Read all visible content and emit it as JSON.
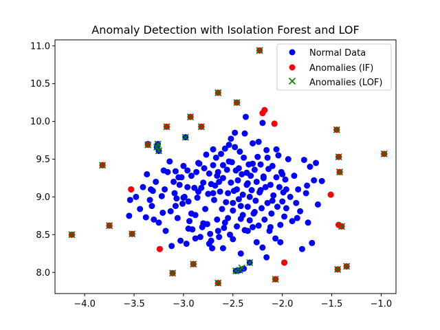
{
  "chart_data": {
    "type": "scatter",
    "title": "Anomaly Detection with Isolation Forest and LOF",
    "xlabel": "",
    "ylabel": "",
    "xlim": [
      -4.3,
      -0.85
    ],
    "ylim": [
      7.72,
      11.08
    ],
    "xticks": [
      -4.0,
      -3.5,
      -3.0,
      -2.5,
      -2.0,
      -1.5,
      -1.0
    ],
    "xtick_labels": [
      "−4.0",
      "−3.5",
      "−3.0",
      "−2.5",
      "−2.0",
      "−1.5",
      "−1.0"
    ],
    "yticks": [
      8.0,
      8.5,
      9.0,
      9.5,
      10.0,
      10.5,
      11.0
    ],
    "ytick_labels": [
      "8.0",
      "8.5",
      "9.0",
      "9.5",
      "10.0",
      "10.5",
      "11.0"
    ],
    "grid": false,
    "legend": {
      "location": "top-right",
      "entries": [
        "Normal Data",
        "Anomalies (IF)",
        "Anomalies (LOF)"
      ]
    },
    "colors": {
      "normal": "#0000ff",
      "if": "#ff0000",
      "lof": "#008000"
    },
    "series": [
      {
        "name": "Normal Data",
        "marker": "circle",
        "points": [
          [
            -4.13,
            8.5
          ],
          [
            -3.82,
            9.42
          ],
          [
            -3.75,
            8.62
          ],
          [
            -3.55,
            8.75
          ],
          [
            -3.54,
            8.96
          ],
          [
            -3.53,
            9.1
          ],
          [
            -3.52,
            8.51
          ],
          [
            -3.48,
            9.0
          ],
          [
            -3.44,
            8.84
          ],
          [
            -3.41,
            9.13
          ],
          [
            -3.38,
            8.73
          ],
          [
            -3.37,
            9.3
          ],
          [
            -3.36,
            9.7
          ],
          [
            -3.34,
            8.96
          ],
          [
            -3.33,
            9.1
          ],
          [
            -3.32,
            8.88
          ],
          [
            -3.31,
            9.08
          ],
          [
            -3.3,
            8.7
          ],
          [
            -3.28,
            9.2
          ],
          [
            -3.27,
            9.66
          ],
          [
            -3.26,
            9.7
          ],
          [
            -3.25,
            9.61
          ],
          [
            -3.25,
            8.66
          ],
          [
            -3.24,
            8.31
          ],
          [
            -3.22,
            9.01
          ],
          [
            -3.21,
            8.79
          ],
          [
            -3.2,
            9.35
          ],
          [
            -3.19,
            9.1
          ],
          [
            -3.18,
            8.55
          ],
          [
            -3.17,
            9.93
          ],
          [
            -3.16,
            9.33
          ],
          [
            -3.14,
            9.47
          ],
          [
            -3.13,
            8.81
          ],
          [
            -3.12,
            8.35
          ],
          [
            -3.11,
            7.99
          ],
          [
            -3.1,
            9.2
          ],
          [
            -3.09,
            9.05
          ],
          [
            -3.08,
            9.34
          ],
          [
            -3.07,
            8.98
          ],
          [
            -3.06,
            8.72
          ],
          [
            -3.05,
            9.26
          ],
          [
            -3.04,
            9.16
          ],
          [
            -3.03,
            8.42
          ],
          [
            -3.02,
            9.26
          ],
          [
            -3.01,
            8.91
          ],
          [
            -3.0,
            9.41
          ],
          [
            -2.99,
            9.0
          ],
          [
            -2.98,
            9.79
          ],
          [
            -2.97,
            8.38
          ],
          [
            -2.96,
            9.13
          ],
          [
            -2.95,
            8.94
          ],
          [
            -2.94,
            8.68
          ],
          [
            -2.93,
            10.06
          ],
          [
            -2.92,
            9.28
          ],
          [
            -2.91,
            8.57
          ],
          [
            -2.9,
            8.11
          ],
          [
            -2.89,
            9.12
          ],
          [
            -2.88,
            8.76
          ],
          [
            -2.87,
            9.33
          ],
          [
            -2.86,
            8.99
          ],
          [
            -2.85,
            9.07
          ],
          [
            -2.84,
            9.44
          ],
          [
            -2.83,
            8.47
          ],
          [
            -2.82,
            9.93
          ],
          [
            -2.81,
            8.6
          ],
          [
            -2.8,
            9.19
          ],
          [
            -2.79,
            9.38
          ],
          [
            -2.78,
            8.84
          ],
          [
            -2.77,
            9.56
          ],
          [
            -2.76,
            8.64
          ],
          [
            -2.75,
            9.04
          ],
          [
            -2.74,
            9.31
          ],
          [
            -2.73,
            8.51
          ],
          [
            -2.72,
            9.17
          ],
          [
            -2.71,
            8.32
          ],
          [
            -2.7,
            9.42
          ],
          [
            -2.69,
            8.96
          ],
          [
            -2.68,
            9.15
          ],
          [
            -2.67,
            9.52
          ],
          [
            -2.66,
            8.7
          ],
          [
            -2.65,
            9.33
          ],
          [
            -2.64,
            8.47
          ],
          [
            -2.63,
            9.07
          ],
          [
            -2.62,
            9.57
          ],
          [
            -2.61,
            8.84
          ],
          [
            -2.6,
            9.25
          ],
          [
            -2.59,
            8.59
          ],
          [
            -2.58,
            9.64
          ],
          [
            -2.57,
            8.93
          ],
          [
            -2.56,
            9.36
          ],
          [
            -2.55,
            8.72
          ],
          [
            -2.54,
            9.69
          ],
          [
            -2.53,
            8.5
          ],
          [
            -2.52,
            9.19
          ],
          [
            -2.51,
            9.46
          ],
          [
            -2.5,
            8.82
          ],
          [
            -2.49,
            9.08
          ],
          [
            -2.48,
            9.85
          ],
          [
            -2.47,
            9.35
          ],
          [
            -2.46,
            8.61
          ],
          [
            -2.45,
            9.22
          ],
          [
            -2.44,
            8.97
          ],
          [
            -2.43,
            9.6
          ],
          [
            -2.42,
            8.71
          ],
          [
            -2.41,
            9.3
          ],
          [
            -2.4,
            9.03
          ],
          [
            -2.39,
            9.52
          ],
          [
            -2.38,
            8.56
          ],
          [
            -2.37,
            10.06
          ],
          [
            -2.36,
            9.16
          ],
          [
            -2.35,
            8.87
          ],
          [
            -2.34,
            9.43
          ],
          [
            -2.33,
            8.69
          ],
          [
            -2.32,
            9.28
          ],
          [
            -2.31,
            9.09
          ],
          [
            -2.3,
            9.71
          ],
          [
            -2.29,
            8.78
          ],
          [
            -2.28,
            9.36
          ],
          [
            -2.27,
            8.95
          ],
          [
            -2.26,
            9.2
          ],
          [
            -2.25,
            9.53
          ],
          [
            -2.24,
            8.62
          ],
          [
            -2.23,
            9.06
          ],
          [
            -2.22,
            9.43
          ],
          [
            -2.21,
            8.85
          ],
          [
            -2.2,
            9.98
          ],
          [
            -2.19,
            9.27
          ],
          [
            -2.18,
            8.7
          ],
          [
            -2.17,
            9.13
          ],
          [
            -2.16,
            9.62
          ],
          [
            -2.15,
            8.92
          ],
          [
            -2.14,
            9.37
          ],
          [
            -2.13,
            8.55
          ],
          [
            -2.12,
            9.16
          ],
          [
            -2.11,
            8.78
          ],
          [
            -2.1,
            9.41
          ],
          [
            -2.09,
            9.02
          ],
          [
            -2.08,
            9.97
          ],
          [
            -2.07,
            8.45
          ],
          [
            -2.06,
            9.26
          ],
          [
            -2.05,
            8.87
          ],
          [
            -2.04,
            9.55
          ],
          [
            -2.03,
            9.13
          ],
          [
            -2.02,
            8.63
          ],
          [
            -2.01,
            9.33
          ],
          [
            -2.0,
            8.94
          ],
          [
            -1.99,
            9.06
          ],
          [
            -1.98,
            8.74
          ],
          [
            -1.97,
            9.23
          ],
          [
            -1.96,
            8.85
          ],
          [
            -1.94,
            9.5
          ],
          [
            -1.92,
            9.0
          ],
          [
            -1.9,
            8.68
          ],
          [
            -1.88,
            9.28
          ],
          [
            -1.86,
            8.92
          ],
          [
            -1.84,
            9.1
          ],
          [
            -1.82,
            8.81
          ],
          [
            -1.8,
            8.31
          ],
          [
            -1.78,
            9.49
          ],
          [
            -1.76,
            9.05
          ],
          [
            -1.74,
            8.66
          ],
          [
            -1.72,
            9.4
          ],
          [
            -1.7,
            8.39
          ],
          [
            -1.68,
            9.22
          ],
          [
            -1.66,
            9.45
          ],
          [
            -1.64,
            8.9
          ],
          [
            -1.6,
            9.21
          ],
          [
            -2.42,
            8.25
          ],
          [
            -2.6,
            8.32
          ],
          [
            -2.74,
            8.38
          ],
          [
            -2.88,
            8.45
          ],
          [
            -2.35,
            8.55
          ],
          [
            -2.2,
            8.33
          ],
          [
            -2.5,
            8.92
          ],
          [
            -2.28,
            8.8
          ],
          [
            -2.46,
            9.1
          ],
          [
            -2.64,
            9.2
          ],
          [
            -2.36,
            9.32
          ],
          [
            -2.54,
            9.47
          ],
          [
            -2.7,
            9.05
          ],
          [
            -2.4,
            8.76
          ],
          [
            -2.58,
            8.66
          ],
          [
            -2.22,
            9.09
          ],
          [
            -2.3,
            9.44
          ],
          [
            -2.48,
            9.66
          ],
          [
            -2.66,
            9.28
          ],
          [
            -2.82,
            9.12
          ],
          [
            -2.96,
            9.35
          ],
          [
            -3.08,
            8.88
          ],
          [
            -2.12,
            8.6
          ],
          [
            -2.06,
            9.63
          ],
          [
            -1.96,
            9.1
          ],
          [
            -2.02,
            8.4
          ],
          [
            -2.16,
            8.2
          ],
          [
            -2.3,
            8.6
          ],
          [
            -2.5,
            8.44
          ],
          [
            -2.65,
            8.55
          ],
          [
            -2.8,
            8.65
          ],
          [
            -2.92,
            8.78
          ],
          [
            -3.0,
            8.99
          ],
          [
            -2.44,
            9.38
          ],
          [
            -2.55,
            9.05
          ],
          [
            -2.35,
            9.18
          ],
          [
            -2.24,
            9.73
          ],
          [
            -2.38,
            9.84
          ],
          [
            -2.52,
            9.77
          ],
          [
            -2.7,
            9.63
          ],
          [
            -2.85,
            9.45
          ],
          [
            -2.95,
            8.58
          ],
          [
            -2.72,
            8.42
          ],
          [
            -2.26,
            8.4
          ],
          [
            -2.1,
            8.95
          ],
          [
            -1.85,
            8.72
          ],
          [
            -1.75,
            9.15
          ],
          [
            -2.0,
            9.3
          ],
          [
            -2.15,
            9.52
          ],
          [
            -2.42,
            8.88
          ],
          [
            -2.6,
            9.42
          ],
          [
            -2.33,
            9.0
          ],
          [
            -2.19,
            9.25
          ],
          [
            -2.47,
            8.02
          ],
          [
            -2.43,
            8.03
          ],
          [
            -2.39,
            8.05
          ],
          [
            -2.33,
            8.13
          ],
          [
            -2.65,
            7.86
          ],
          [
            -2.07,
            7.91
          ],
          [
            -2.46,
            10.25
          ],
          [
            -2.65,
            10.38
          ],
          [
            -2.23,
            10.94
          ],
          [
            -2.2,
            10.11
          ],
          [
            -2.18,
            10.15
          ],
          [
            -1.45,
            9.89
          ],
          [
            -1.43,
            9.53
          ],
          [
            -1.42,
            9.33
          ],
          [
            -1.43,
            8.63
          ],
          [
            -1.4,
            8.61
          ],
          [
            -1.44,
            8.04
          ],
          [
            -1.35,
            8.08
          ],
          [
            -0.97,
            9.57
          ],
          [
            -1.51,
            9.03
          ],
          [
            -1.98,
            8.13
          ]
        ]
      },
      {
        "name": "Anomalies (IF)",
        "marker": "circle",
        "points": [
          [
            -4.13,
            8.5
          ],
          [
            -3.82,
            9.42
          ],
          [
            -3.75,
            8.62
          ],
          [
            -3.53,
            9.1
          ],
          [
            -3.52,
            8.51
          ],
          [
            -3.36,
            9.69
          ],
          [
            -3.24,
            8.31
          ],
          [
            -3.17,
            9.93
          ],
          [
            -3.11,
            7.99
          ],
          [
            -2.93,
            10.06
          ],
          [
            -2.9,
            8.11
          ],
          [
            -2.82,
            9.93
          ],
          [
            -2.65,
            10.38
          ],
          [
            -2.65,
            7.86
          ],
          [
            -2.46,
            10.25
          ],
          [
            -2.23,
            10.94
          ],
          [
            -2.2,
            10.11
          ],
          [
            -2.18,
            10.15
          ],
          [
            -2.08,
            9.97
          ],
          [
            -2.07,
            7.91
          ],
          [
            -1.98,
            8.13
          ],
          [
            -1.51,
            9.03
          ],
          [
            -1.45,
            9.89
          ],
          [
            -1.43,
            9.53
          ],
          [
            -1.42,
            9.33
          ],
          [
            -1.43,
            8.63
          ],
          [
            -1.4,
            8.61
          ],
          [
            -1.44,
            8.04
          ],
          [
            -1.35,
            8.08
          ],
          [
            -0.97,
            9.57
          ]
        ]
      },
      {
        "name": "Anomalies (LOF)",
        "marker": "x",
        "points": [
          [
            -4.13,
            8.5
          ],
          [
            -3.82,
            9.42
          ],
          [
            -3.75,
            8.62
          ],
          [
            -3.52,
            8.51
          ],
          [
            -3.36,
            9.69
          ],
          [
            -3.27,
            9.66
          ],
          [
            -3.26,
            9.7
          ],
          [
            -3.25,
            9.61
          ],
          [
            -3.17,
            9.93
          ],
          [
            -3.11,
            7.99
          ],
          [
            -2.98,
            9.79
          ],
          [
            -2.93,
            10.06
          ],
          [
            -2.9,
            8.11
          ],
          [
            -2.82,
            9.93
          ],
          [
            -2.65,
            10.38
          ],
          [
            -2.65,
            7.86
          ],
          [
            -2.47,
            8.02
          ],
          [
            -2.43,
            8.03
          ],
          [
            -2.41,
            8.06
          ],
          [
            -2.33,
            8.13
          ],
          [
            -2.46,
            10.25
          ],
          [
            -2.23,
            10.94
          ],
          [
            -2.07,
            7.91
          ],
          [
            -1.45,
            9.89
          ],
          [
            -1.43,
            9.53
          ],
          [
            -1.42,
            9.33
          ],
          [
            -1.4,
            8.61
          ],
          [
            -1.44,
            8.04
          ],
          [
            -1.35,
            8.08
          ],
          [
            -0.97,
            9.57
          ]
        ]
      }
    ]
  }
}
